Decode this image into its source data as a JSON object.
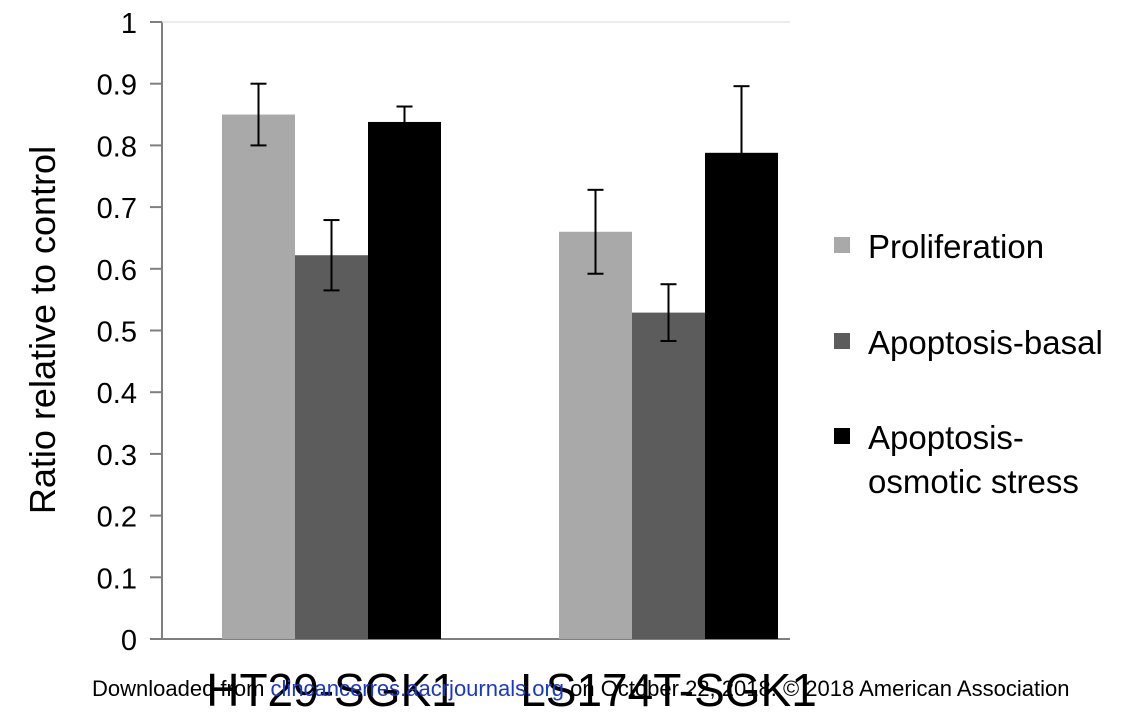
{
  "chart_data": {
    "type": "bar",
    "categories": [
      "HT29-SGK1",
      "LS174T-SGK1"
    ],
    "series": [
      {
        "name": "Proliferation",
        "color": "#a9a9a9",
        "values": [
          0.85,
          0.66
        ],
        "errors": [
          0.05,
          0.068
        ]
      },
      {
        "name": "Apoptosis-basal",
        "color": "#5c5c5c",
        "values": [
          0.622,
          0.529
        ],
        "errors": [
          0.057,
          0.046
        ]
      },
      {
        "name": "Apoptosis-osmotic stress",
        "color": "#000000",
        "values": [
          0.838,
          0.788
        ],
        "errors": [
          0.025,
          0.108
        ]
      }
    ],
    "legend_lines": [
      [
        "Proliferation"
      ],
      [
        "Apoptosis-basal"
      ],
      [
        "Apoptosis-",
        "osmotic stress"
      ]
    ],
    "ylabel": "Ratio relative to control",
    "xlabel": "",
    "ylim": [
      0,
      1
    ],
    "yticks": [
      "0",
      "0.1",
      "0.2",
      "0.3",
      "0.4",
      "0.5",
      "0.6",
      "0.7",
      "0.8",
      "0.9",
      "1"
    ],
    "grid": false,
    "legend_position": "right"
  },
  "footer": {
    "prefix": "Downloaded from ",
    "link": "clincancerres.aacrjournals.org",
    "suffix": " on October 22, 2018. © 2018 American Association"
  }
}
